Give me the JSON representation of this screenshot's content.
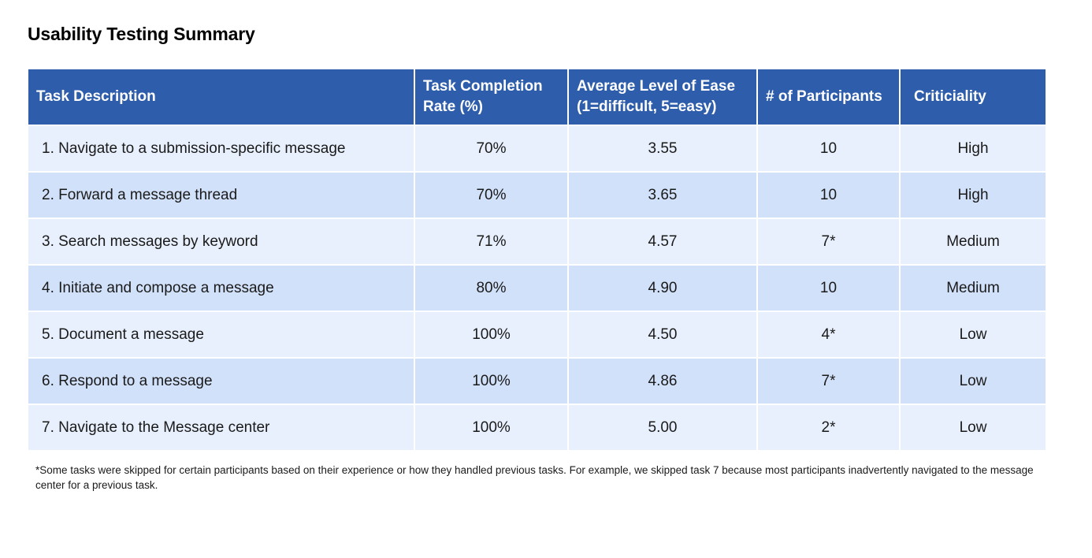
{
  "title": "Usability Testing Summary",
  "table": {
    "headers": [
      {
        "line1": "Task Description",
        "line2": ""
      },
      {
        "line1": "Task Completion",
        "line2": "Rate (%)"
      },
      {
        "line1": "Average Level of Ease",
        "line2": "(1=difficult, 5=easy)"
      },
      {
        "line1": "# of Participants",
        "line2": ""
      },
      {
        "line1": "Criticiality",
        "line2": ""
      }
    ],
    "rows": [
      {
        "task": "1. Navigate to a submission-specific message",
        "completion": "70%",
        "ease": "3.55",
        "participants": "10",
        "criticality": "High"
      },
      {
        "task": "2. Forward a message thread",
        "completion": "70%",
        "ease": "3.65",
        "participants": "10",
        "criticality": "High"
      },
      {
        "task": "3. Search messages by keyword",
        "completion": "71%",
        "ease": "4.57",
        "participants": "7*",
        "criticality": "Medium"
      },
      {
        "task": "4. Initiate and compose a message",
        "completion": "80%",
        "ease": "4.90",
        "participants": "10",
        "criticality": "Medium"
      },
      {
        "task": "5. Document a message",
        "completion": "100%",
        "ease": "4.50",
        "participants": "4*",
        "criticality": "Low"
      },
      {
        "task": "6. Respond to a message",
        "completion": "100%",
        "ease": "4.86",
        "participants": "7*",
        "criticality": "Low"
      },
      {
        "task": "7. Navigate to the Message center",
        "completion": "100%",
        "ease": "5.00",
        "participants": "2*",
        "criticality": "Low"
      }
    ]
  },
  "footnote": "*Some tasks were skipped for certain participants based on their experience or how they handled previous tasks. For example, we skipped task 7 because most participants inadvertently navigated to the message center for a previous task.",
  "colors": {
    "header_bg": "#2d5dab",
    "row_light": "#e8f0fd",
    "row_dark": "#d2e1fa"
  }
}
